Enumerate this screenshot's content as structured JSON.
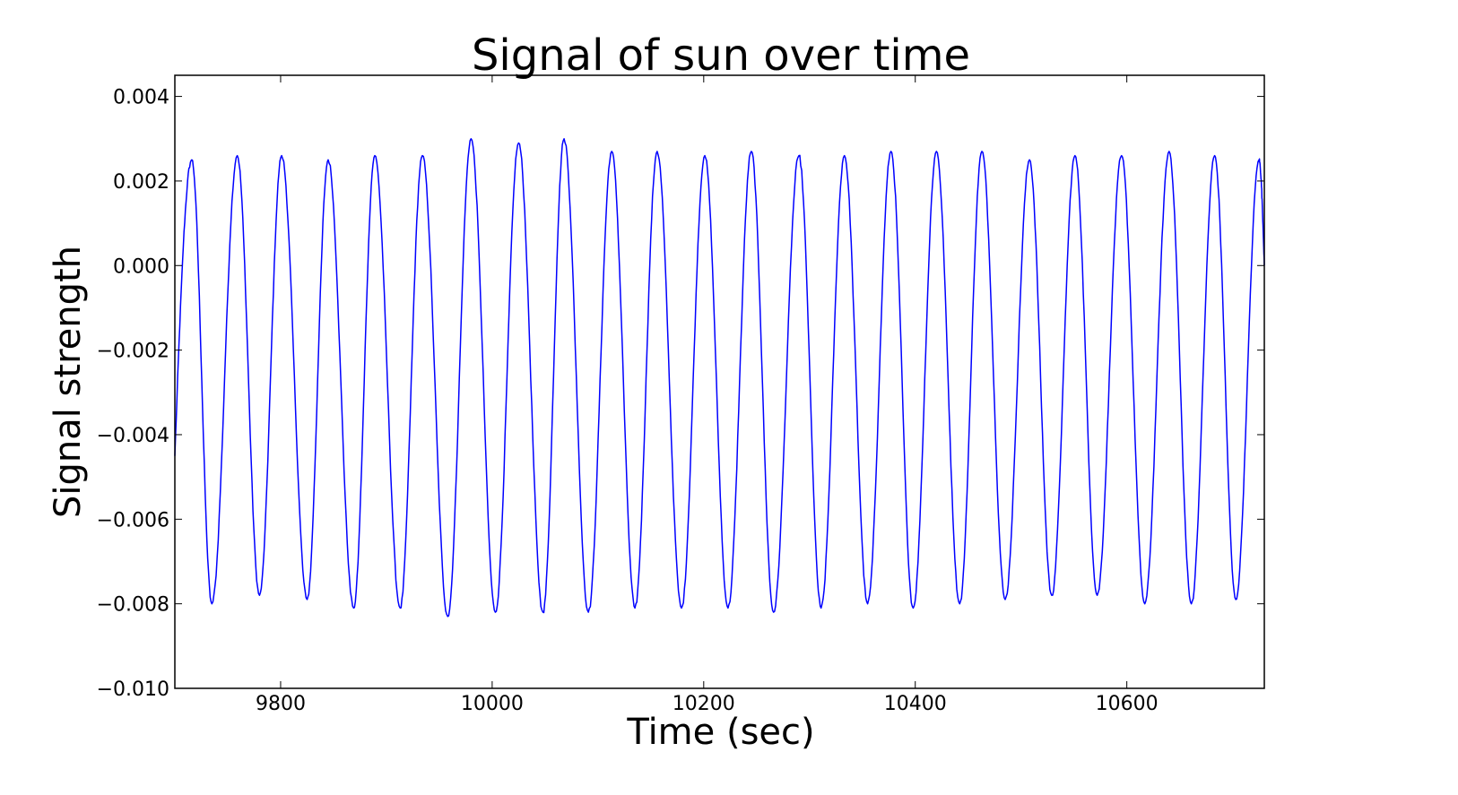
{
  "chart_data": {
    "type": "line",
    "title": "Signal of sun over time",
    "xlabel": "Time (sec)",
    "ylabel": "Signal strength",
    "xlim": [
      9700,
      10730
    ],
    "ylim": [
      -0.01,
      0.0045
    ],
    "x_ticks": [
      9800,
      10000,
      10200,
      10400,
      10600
    ],
    "x_tick_labels": [
      "9800",
      "10000",
      "10200",
      "10400",
      "10600"
    ],
    "y_ticks": [
      0.004,
      0.002,
      0.0,
      -0.002,
      -0.004,
      -0.006,
      -0.008,
      -0.01
    ],
    "y_tick_labels": [
      "0.004",
      "0.002",
      "0.000",
      "−0.002",
      "−0.004",
      "−0.006",
      "−0.008",
      "−0.010"
    ],
    "grid": false,
    "series": [
      {
        "color": "#0000ff",
        "peaks": [
          [
            9716,
            0.0025
          ],
          [
            9759,
            0.0026
          ],
          [
            9801,
            0.0026
          ],
          [
            9845,
            0.0025
          ],
          [
            9889,
            0.0026
          ],
          [
            9934,
            0.0026
          ],
          [
            9980,
            0.003
          ],
          [
            10025,
            0.0029
          ],
          [
            10068,
            0.003
          ],
          [
            10113,
            0.0027
          ],
          [
            10156,
            0.0027
          ],
          [
            10201,
            0.0026
          ],
          [
            10245,
            0.0027
          ],
          [
            10290,
            0.0026
          ],
          [
            10333,
            0.0026
          ],
          [
            10377,
            0.0027
          ],
          [
            10420,
            0.0027
          ],
          [
            10463,
            0.0027
          ],
          [
            10508,
            0.0025
          ],
          [
            10551,
            0.0026
          ],
          [
            10595,
            0.0026
          ],
          [
            10640,
            0.0027
          ],
          [
            10683,
            0.0026
          ],
          [
            10725,
            0.0025
          ]
        ],
        "troughs": [
          [
            9735,
            -0.008
          ],
          [
            9780,
            -0.0078
          ],
          [
            9825,
            -0.0079
          ],
          [
            9869,
            -0.0081
          ],
          [
            9913,
            -0.0081
          ],
          [
            9958,
            -0.0083
          ],
          [
            10003,
            -0.0082
          ],
          [
            10048,
            -0.0082
          ],
          [
            10091,
            -0.0082
          ],
          [
            10135,
            -0.0081
          ],
          [
            10179,
            -0.0081
          ],
          [
            10223,
            -0.0081
          ],
          [
            10266,
            -0.0082
          ],
          [
            10311,
            -0.0081
          ],
          [
            10355,
            -0.008
          ],
          [
            10398,
            -0.0081
          ],
          [
            10442,
            -0.008
          ],
          [
            10485,
            -0.0079
          ],
          [
            10529,
            -0.0078
          ],
          [
            10572,
            -0.0078
          ],
          [
            10617,
            -0.008
          ],
          [
            10661,
            -0.008
          ],
          [
            10703,
            -0.0079
          ]
        ],
        "start": [
          9700,
          -0.0045
        ],
        "end": [
          10730,
          0.0
        ]
      }
    ]
  }
}
